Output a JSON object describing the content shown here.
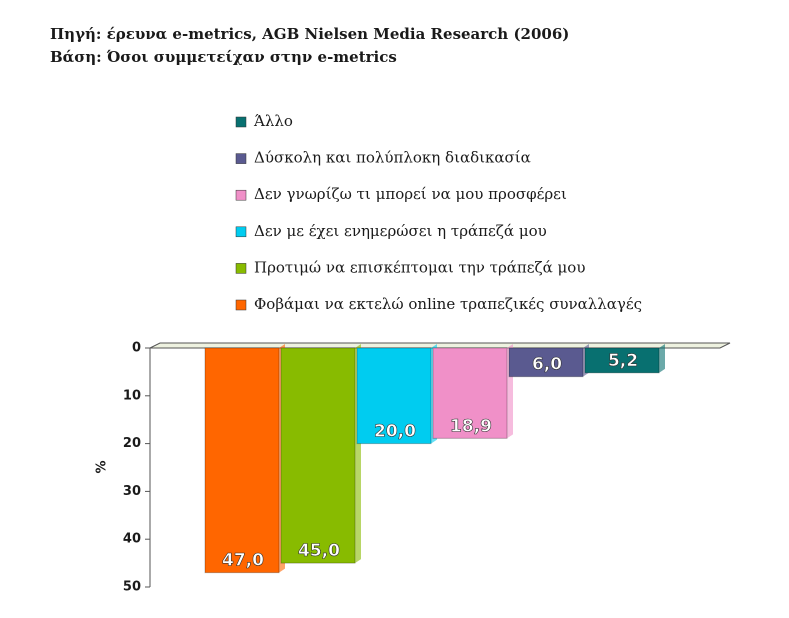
{
  "chart_data": {
    "type": "bar",
    "title": "Πηγή: έρευνα e-metrics, AGB Nielsen Media Research (2006)",
    "subtitle": "Βάση: Όσοι συμμετείχαν στην e-metrics",
    "y_label": "%",
    "categories": [
      "Φοβάμαι να εκτελώ online τραπεζικές συναλλαγές",
      "Προτιμώ να επισκέπτομαι την τράπεζά μου",
      "Δεν με έχει ενημερώσει η τράπεζά μου",
      "Δεν γνωρίζω τι μπορεί να μου προσφέρει",
      "Δύσκολη και πολύπλοκη διαδικασία",
      "Άλλο"
    ],
    "values": [
      47.0,
      45.0,
      20.0,
      18.9,
      6.0,
      5.2
    ],
    "value_labels": [
      "47,0",
      "45,0",
      "20,0",
      "18,9",
      "6,0",
      "5,2"
    ],
    "colors": [
      "#ff6600",
      "#88bb00",
      "#00ccf0",
      "#f090c8",
      "#5a5a90",
      "#087070"
    ],
    "ylim": [
      0,
      50
    ],
    "yticks": [
      0,
      10,
      20,
      30,
      40,
      50
    ],
    "inverted": true
  }
}
